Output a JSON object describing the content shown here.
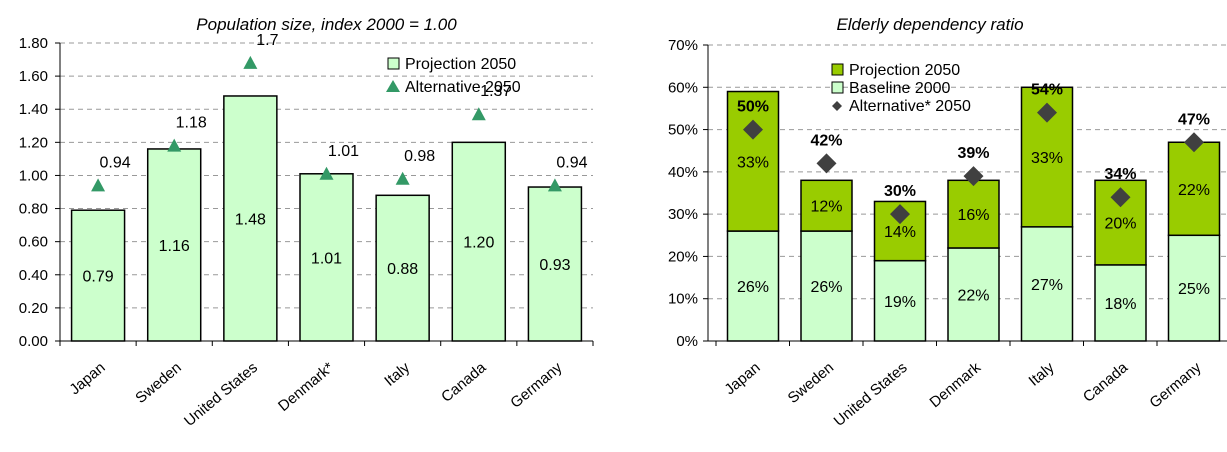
{
  "colors": {
    "bar_fill": "#ccffcc",
    "projection_fill": "#99cc00",
    "triangle": "#339966",
    "diamond": "#404040",
    "grid": "#999999"
  },
  "chart_data": [
    {
      "type": "bar",
      "title": "Population size, index 2000 = 1.00",
      "categories": [
        "Japan",
        "Sweden",
        "United States",
        "Denmark*",
        "Italy",
        "Canada",
        "Germany"
      ],
      "ylim": [
        0,
        1.8
      ],
      "yticks": [
        "0.00",
        "0.20",
        "0.40",
        "0.60",
        "0.80",
        "1.00",
        "1.20",
        "1.40",
        "1.60",
        "1.80"
      ],
      "grid": true,
      "legend_position": "top-right",
      "series": [
        {
          "name": "Projection  2050",
          "kind": "bar",
          "values": [
            0.79,
            1.16,
            1.48,
            1.01,
            0.88,
            1.2,
            0.93
          ],
          "labels": [
            "0.79",
            "1.16",
            "1.48",
            "1.01",
            "0.88",
            "1.20",
            "0.93"
          ]
        },
        {
          "name": "Alternative  2050",
          "kind": "triangle-marker",
          "values": [
            0.94,
            1.18,
            1.68,
            1.01,
            0.98,
            1.37,
            0.94
          ],
          "labels": [
            "0.94",
            "1.18",
            "1.7",
            "1.01",
            "0.98",
            "1.37",
            "0.94"
          ]
        }
      ]
    },
    {
      "type": "bar",
      "title": "Elderly dependency ratio",
      "categories": [
        "Japan",
        "Sweden",
        "United States",
        "Denmark",
        "Italy",
        "Canada",
        "Germany"
      ],
      "ylim": [
        0,
        70
      ],
      "yticks": [
        "0%",
        "10%",
        "20%",
        "30%",
        "40%",
        "50%",
        "60%",
        "70%"
      ],
      "grid": true,
      "legend_position": "top-left",
      "stacked": true,
      "series": [
        {
          "name": "Baseline 2000",
          "kind": "bar",
          "values": [
            26,
            26,
            19,
            22,
            27,
            18,
            25
          ],
          "labels": [
            "26%",
            "26%",
            "19%",
            "22%",
            "27%",
            "18%",
            "25%"
          ]
        },
        {
          "name": "Projection  2050",
          "kind": "bar-stacked",
          "values": [
            33,
            12,
            14,
            16,
            33,
            20,
            22
          ],
          "labels": [
            "33%",
            "12%",
            "14%",
            "16%",
            "33%",
            "20%",
            "22%"
          ]
        },
        {
          "name": "Alternative* 2050",
          "kind": "diamond-marker",
          "values": [
            50,
            42,
            30,
            39,
            54,
            34,
            47
          ],
          "labels": [
            "50%",
            "42%",
            "30%",
            "39%",
            "54%",
            "34%",
            "47%"
          ]
        }
      ]
    }
  ]
}
